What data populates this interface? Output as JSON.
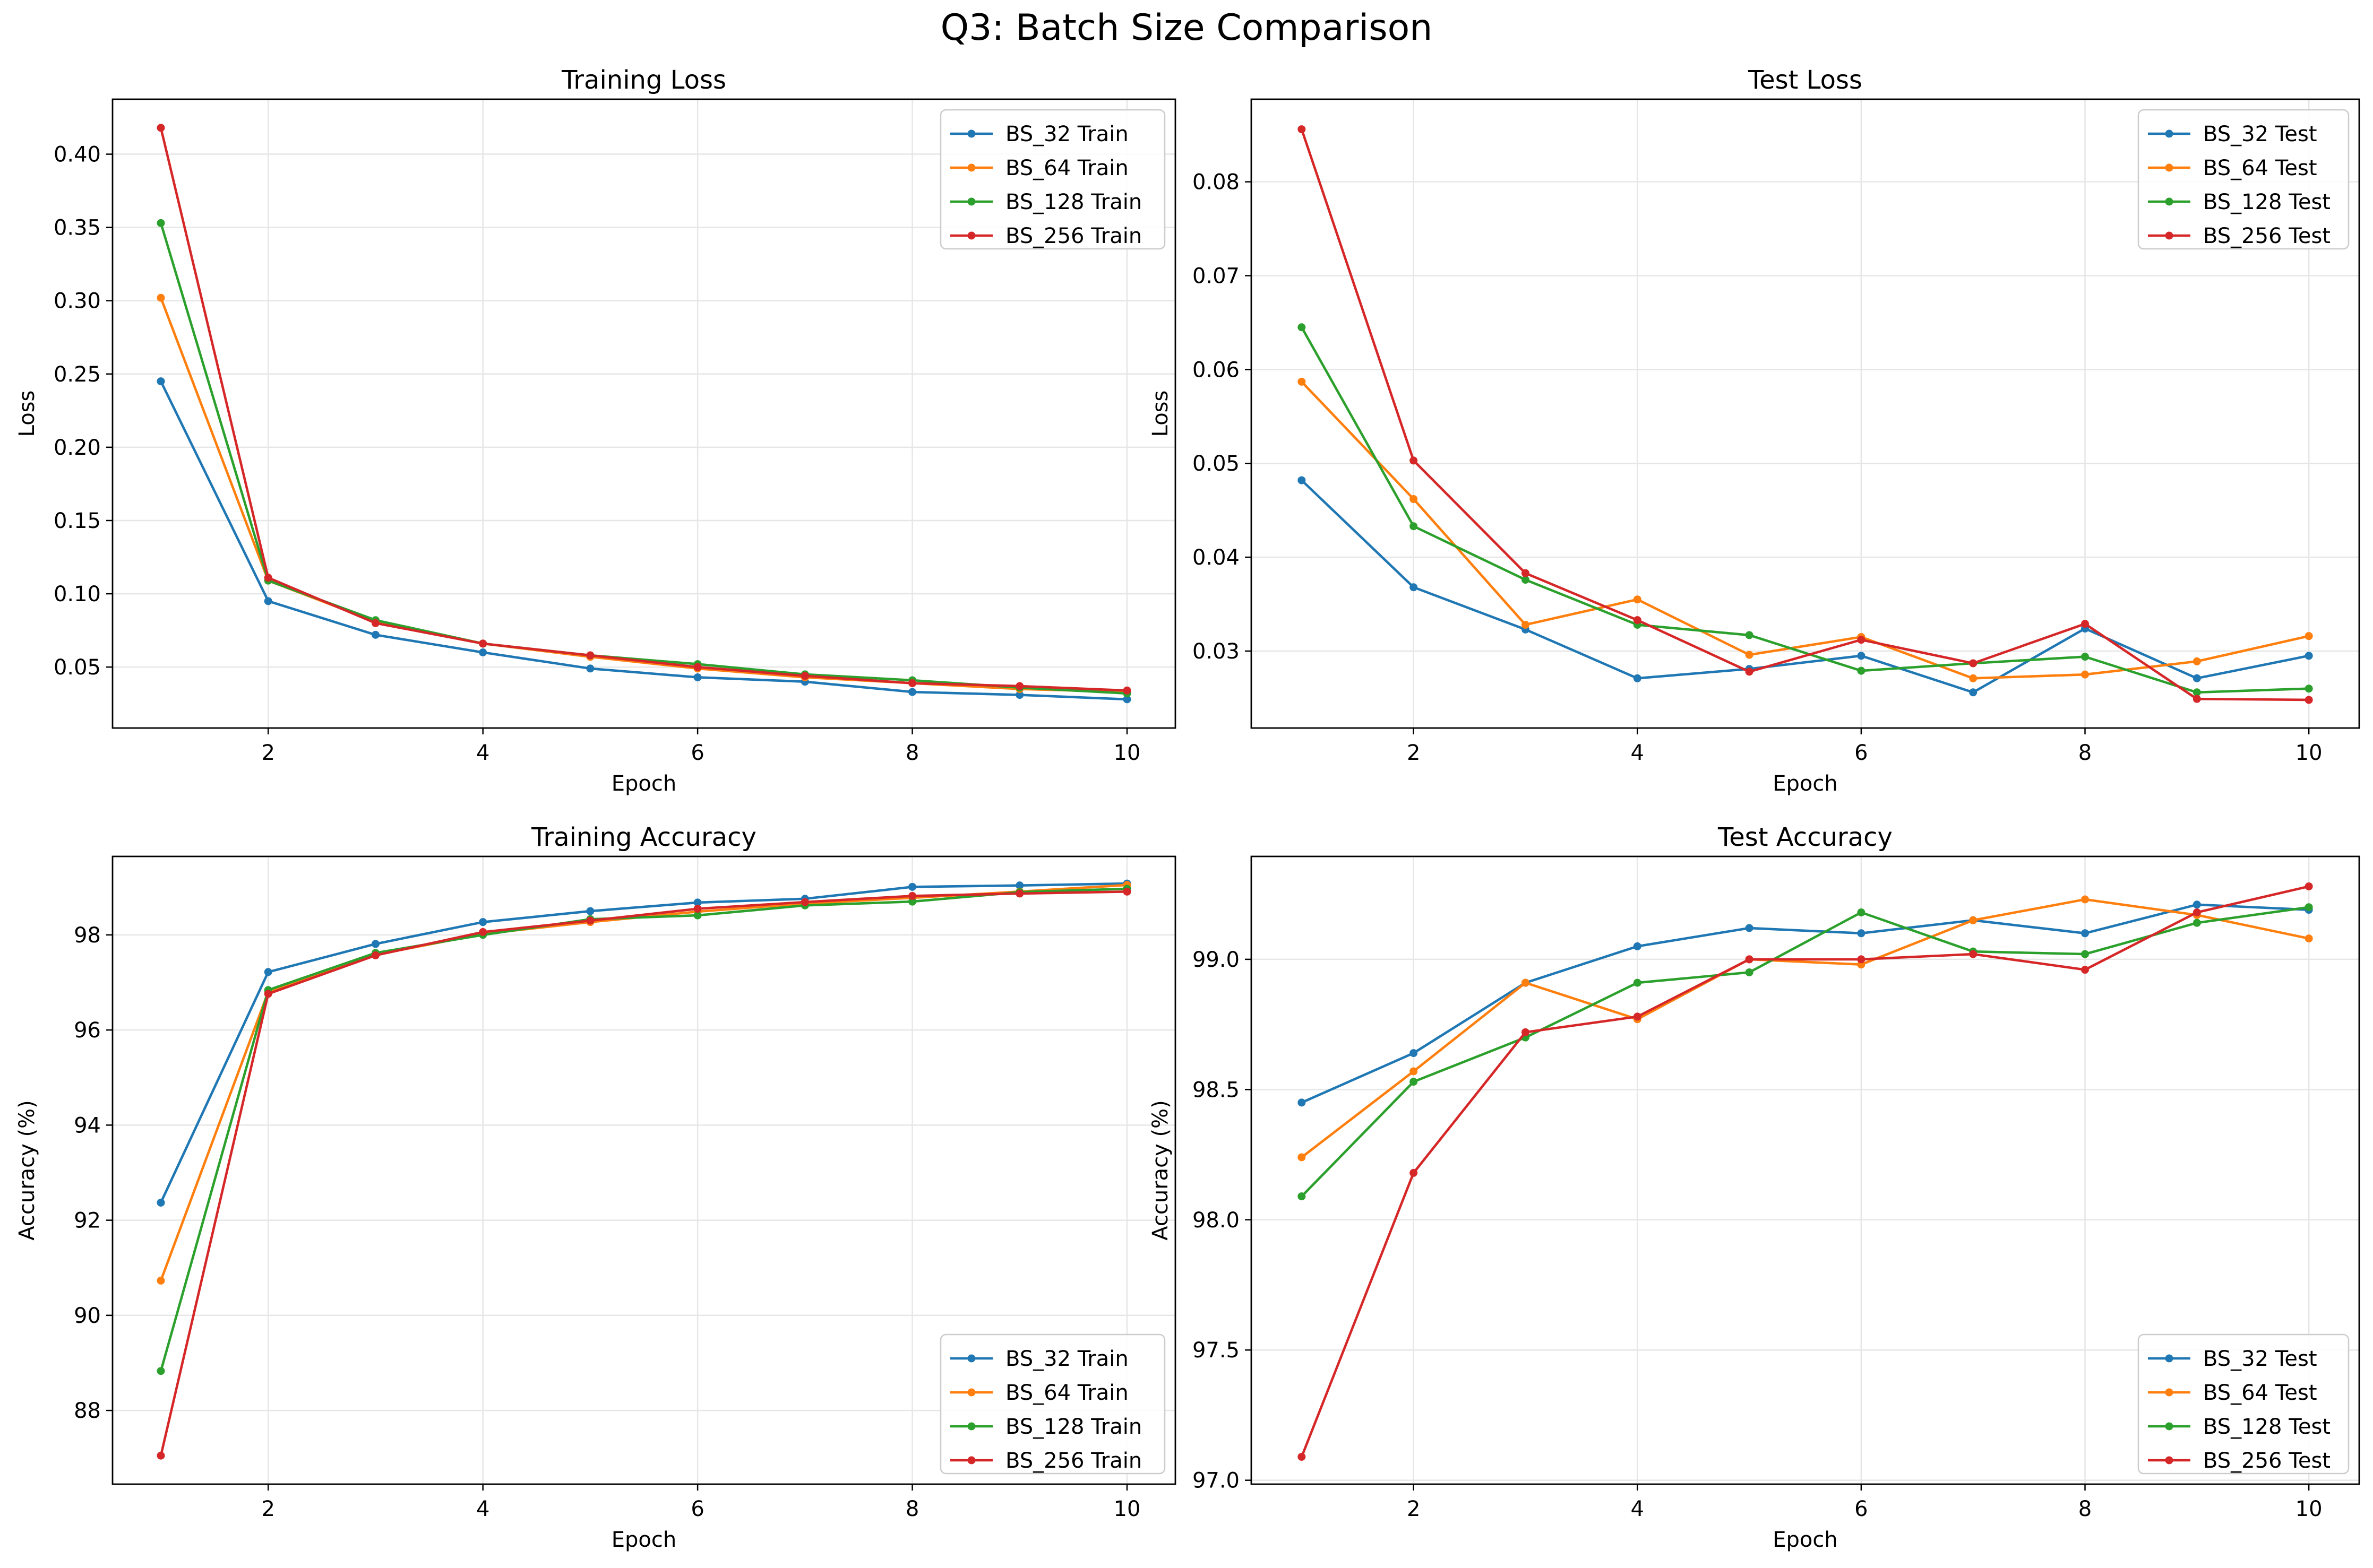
{
  "figure": {
    "title": "Q3: Batch Size Comparison"
  },
  "colors": {
    "BS_32": "#1f77b4",
    "BS_64": "#ff7f0e",
    "BS_128": "#2ca02c",
    "BS_256": "#d62728",
    "grid": "#e6e6e6"
  },
  "chart_data": [
    {
      "id": "training-loss",
      "type": "line",
      "title": "Training Loss",
      "xlabel": "Epoch",
      "ylabel": "Loss",
      "xlim": [
        0.55,
        10.45
      ],
      "ylim": [
        0.0084,
        0.4375
      ],
      "xticks": [
        2,
        4,
        6,
        8,
        10
      ],
      "yticks": [
        0.05,
        0.1,
        0.15,
        0.2,
        0.25,
        0.3,
        0.35,
        0.4
      ],
      "ytick_labels": [
        "0.05",
        "0.10",
        "0.15",
        "0.20",
        "0.25",
        "0.30",
        "0.35",
        "0.40"
      ],
      "grid": true,
      "legend_position": "upper right",
      "x": [
        1,
        2,
        3,
        4,
        5,
        6,
        7,
        8,
        9,
        10
      ],
      "series": [
        {
          "name": "BS_32 Train",
          "color_key": "BS_32",
          "values": [
            0.245,
            0.095,
            0.072,
            0.06,
            0.049,
            0.043,
            0.04,
            0.033,
            0.031,
            0.028
          ]
        },
        {
          "name": "BS_64 Train",
          "color_key": "BS_64",
          "values": [
            0.302,
            0.109,
            0.081,
            0.066,
            0.057,
            0.049,
            0.043,
            0.039,
            0.035,
            0.033
          ]
        },
        {
          "name": "BS_128 Train",
          "color_key": "BS_128",
          "values": [
            0.353,
            0.109,
            0.082,
            0.066,
            0.058,
            0.052,
            0.045,
            0.041,
            0.036,
            0.032
          ]
        },
        {
          "name": "BS_256 Train",
          "color_key": "BS_256",
          "values": [
            0.418,
            0.111,
            0.08,
            0.066,
            0.058,
            0.05,
            0.044,
            0.039,
            0.037,
            0.034
          ]
        }
      ]
    },
    {
      "id": "test-loss",
      "type": "line",
      "title": "Test Loss",
      "xlabel": "Epoch",
      "ylabel": "Loss",
      "xlim": [
        0.55,
        10.45
      ],
      "ylim": [
        0.0218,
        0.0888
      ],
      "xticks": [
        2,
        4,
        6,
        8,
        10
      ],
      "yticks": [
        0.03,
        0.04,
        0.05,
        0.06,
        0.07,
        0.08
      ],
      "ytick_labels": [
        "0.03",
        "0.04",
        "0.05",
        "0.06",
        "0.07",
        "0.08"
      ],
      "grid": true,
      "legend_position": "upper right",
      "x": [
        1,
        2,
        3,
        4,
        5,
        6,
        7,
        8,
        9,
        10
      ],
      "series": [
        {
          "name": "BS_32 Test",
          "color_key": "BS_32",
          "values": [
            0.0482,
            0.0368,
            0.0323,
            0.0271,
            0.0281,
            0.0295,
            0.0256,
            0.0324,
            0.0271,
            0.0295
          ]
        },
        {
          "name": "BS_64 Test",
          "color_key": "BS_64",
          "values": [
            0.0587,
            0.0462,
            0.0328,
            0.0355,
            0.0296,
            0.0315,
            0.0271,
            0.0275,
            0.0289,
            0.0316
          ]
        },
        {
          "name": "BS_128 Test",
          "color_key": "BS_128",
          "values": [
            0.0645,
            0.0433,
            0.0376,
            0.0328,
            0.0317,
            0.0279,
            0.0287,
            0.0294,
            0.0256,
            0.026
          ]
        },
        {
          "name": "BS_256 Test",
          "color_key": "BS_256",
          "values": [
            0.0856,
            0.0503,
            0.0383,
            0.0333,
            0.0278,
            0.0312,
            0.0287,
            0.0329,
            0.0249,
            0.0248
          ]
        }
      ]
    },
    {
      "id": "training-accuracy",
      "type": "line",
      "title": "Training Accuracy",
      "xlabel": "Epoch",
      "ylabel": "Accuracy (%)",
      "xlim": [
        0.55,
        10.45
      ],
      "ylim": [
        86.45,
        99.65
      ],
      "xticks": [
        2,
        4,
        6,
        8,
        10
      ],
      "yticks": [
        88,
        90,
        92,
        94,
        96,
        98
      ],
      "ytick_labels": [
        "88",
        "90",
        "92",
        "94",
        "96",
        "98"
      ],
      "grid": true,
      "legend_position": "lower right",
      "x": [
        1,
        2,
        3,
        4,
        5,
        6,
        7,
        8,
        9,
        10
      ],
      "series": [
        {
          "name": "BS_32 Train",
          "color_key": "BS_32",
          "values": [
            92.37,
            97.22,
            97.81,
            98.27,
            98.5,
            98.68,
            98.76,
            99.01,
            99.04,
            99.08
          ]
        },
        {
          "name": "BS_64 Train",
          "color_key": "BS_64",
          "values": [
            90.73,
            96.8,
            97.58,
            98.02,
            98.27,
            98.49,
            98.66,
            98.78,
            98.91,
            99.05
          ]
        },
        {
          "name": "BS_128 Train",
          "color_key": "BS_128",
          "values": [
            88.83,
            96.84,
            97.62,
            98.0,
            98.33,
            98.41,
            98.62,
            98.7,
            98.9,
            98.97
          ]
        },
        {
          "name": "BS_256 Train",
          "color_key": "BS_256",
          "values": [
            87.05,
            96.76,
            97.57,
            98.06,
            98.3,
            98.55,
            98.69,
            98.82,
            98.87,
            98.91
          ]
        }
      ]
    },
    {
      "id": "test-accuracy",
      "type": "line",
      "title": "Test Accuracy",
      "xlabel": "Epoch",
      "ylabel": "Accuracy (%)",
      "xlim": [
        0.55,
        10.45
      ],
      "ylim": [
        96.985,
        99.395
      ],
      "xticks": [
        2,
        4,
        6,
        8,
        10
      ],
      "yticks": [
        97.0,
        97.5,
        98.0,
        98.5,
        99.0
      ],
      "ytick_labels": [
        "97.0",
        "97.5",
        "98.0",
        "98.5",
        "99.0"
      ],
      "grid": true,
      "legend_position": "lower right",
      "x": [
        1,
        2,
        3,
        4,
        5,
        6,
        7,
        8,
        9,
        10
      ],
      "series": [
        {
          "name": "BS_32 Test",
          "color_key": "BS_32",
          "values": [
            98.45,
            98.64,
            98.91,
            99.05,
            99.12,
            99.1,
            99.15,
            99.1,
            99.21,
            99.19
          ]
        },
        {
          "name": "BS_64 Test",
          "color_key": "BS_64",
          "values": [
            98.24,
            98.57,
            98.91,
            98.77,
            99.0,
            98.98,
            99.15,
            99.23,
            99.17,
            99.08
          ]
        },
        {
          "name": "BS_128 Test",
          "color_key": "BS_128",
          "values": [
            98.09,
            98.53,
            98.7,
            98.91,
            98.95,
            99.18,
            99.03,
            99.02,
            99.14,
            99.2
          ]
        },
        {
          "name": "BS_256 Test",
          "color_key": "BS_256",
          "values": [
            97.09,
            98.18,
            98.72,
            98.78,
            99.0,
            99.0,
            99.02,
            98.96,
            99.18,
            99.28
          ]
        }
      ]
    }
  ]
}
